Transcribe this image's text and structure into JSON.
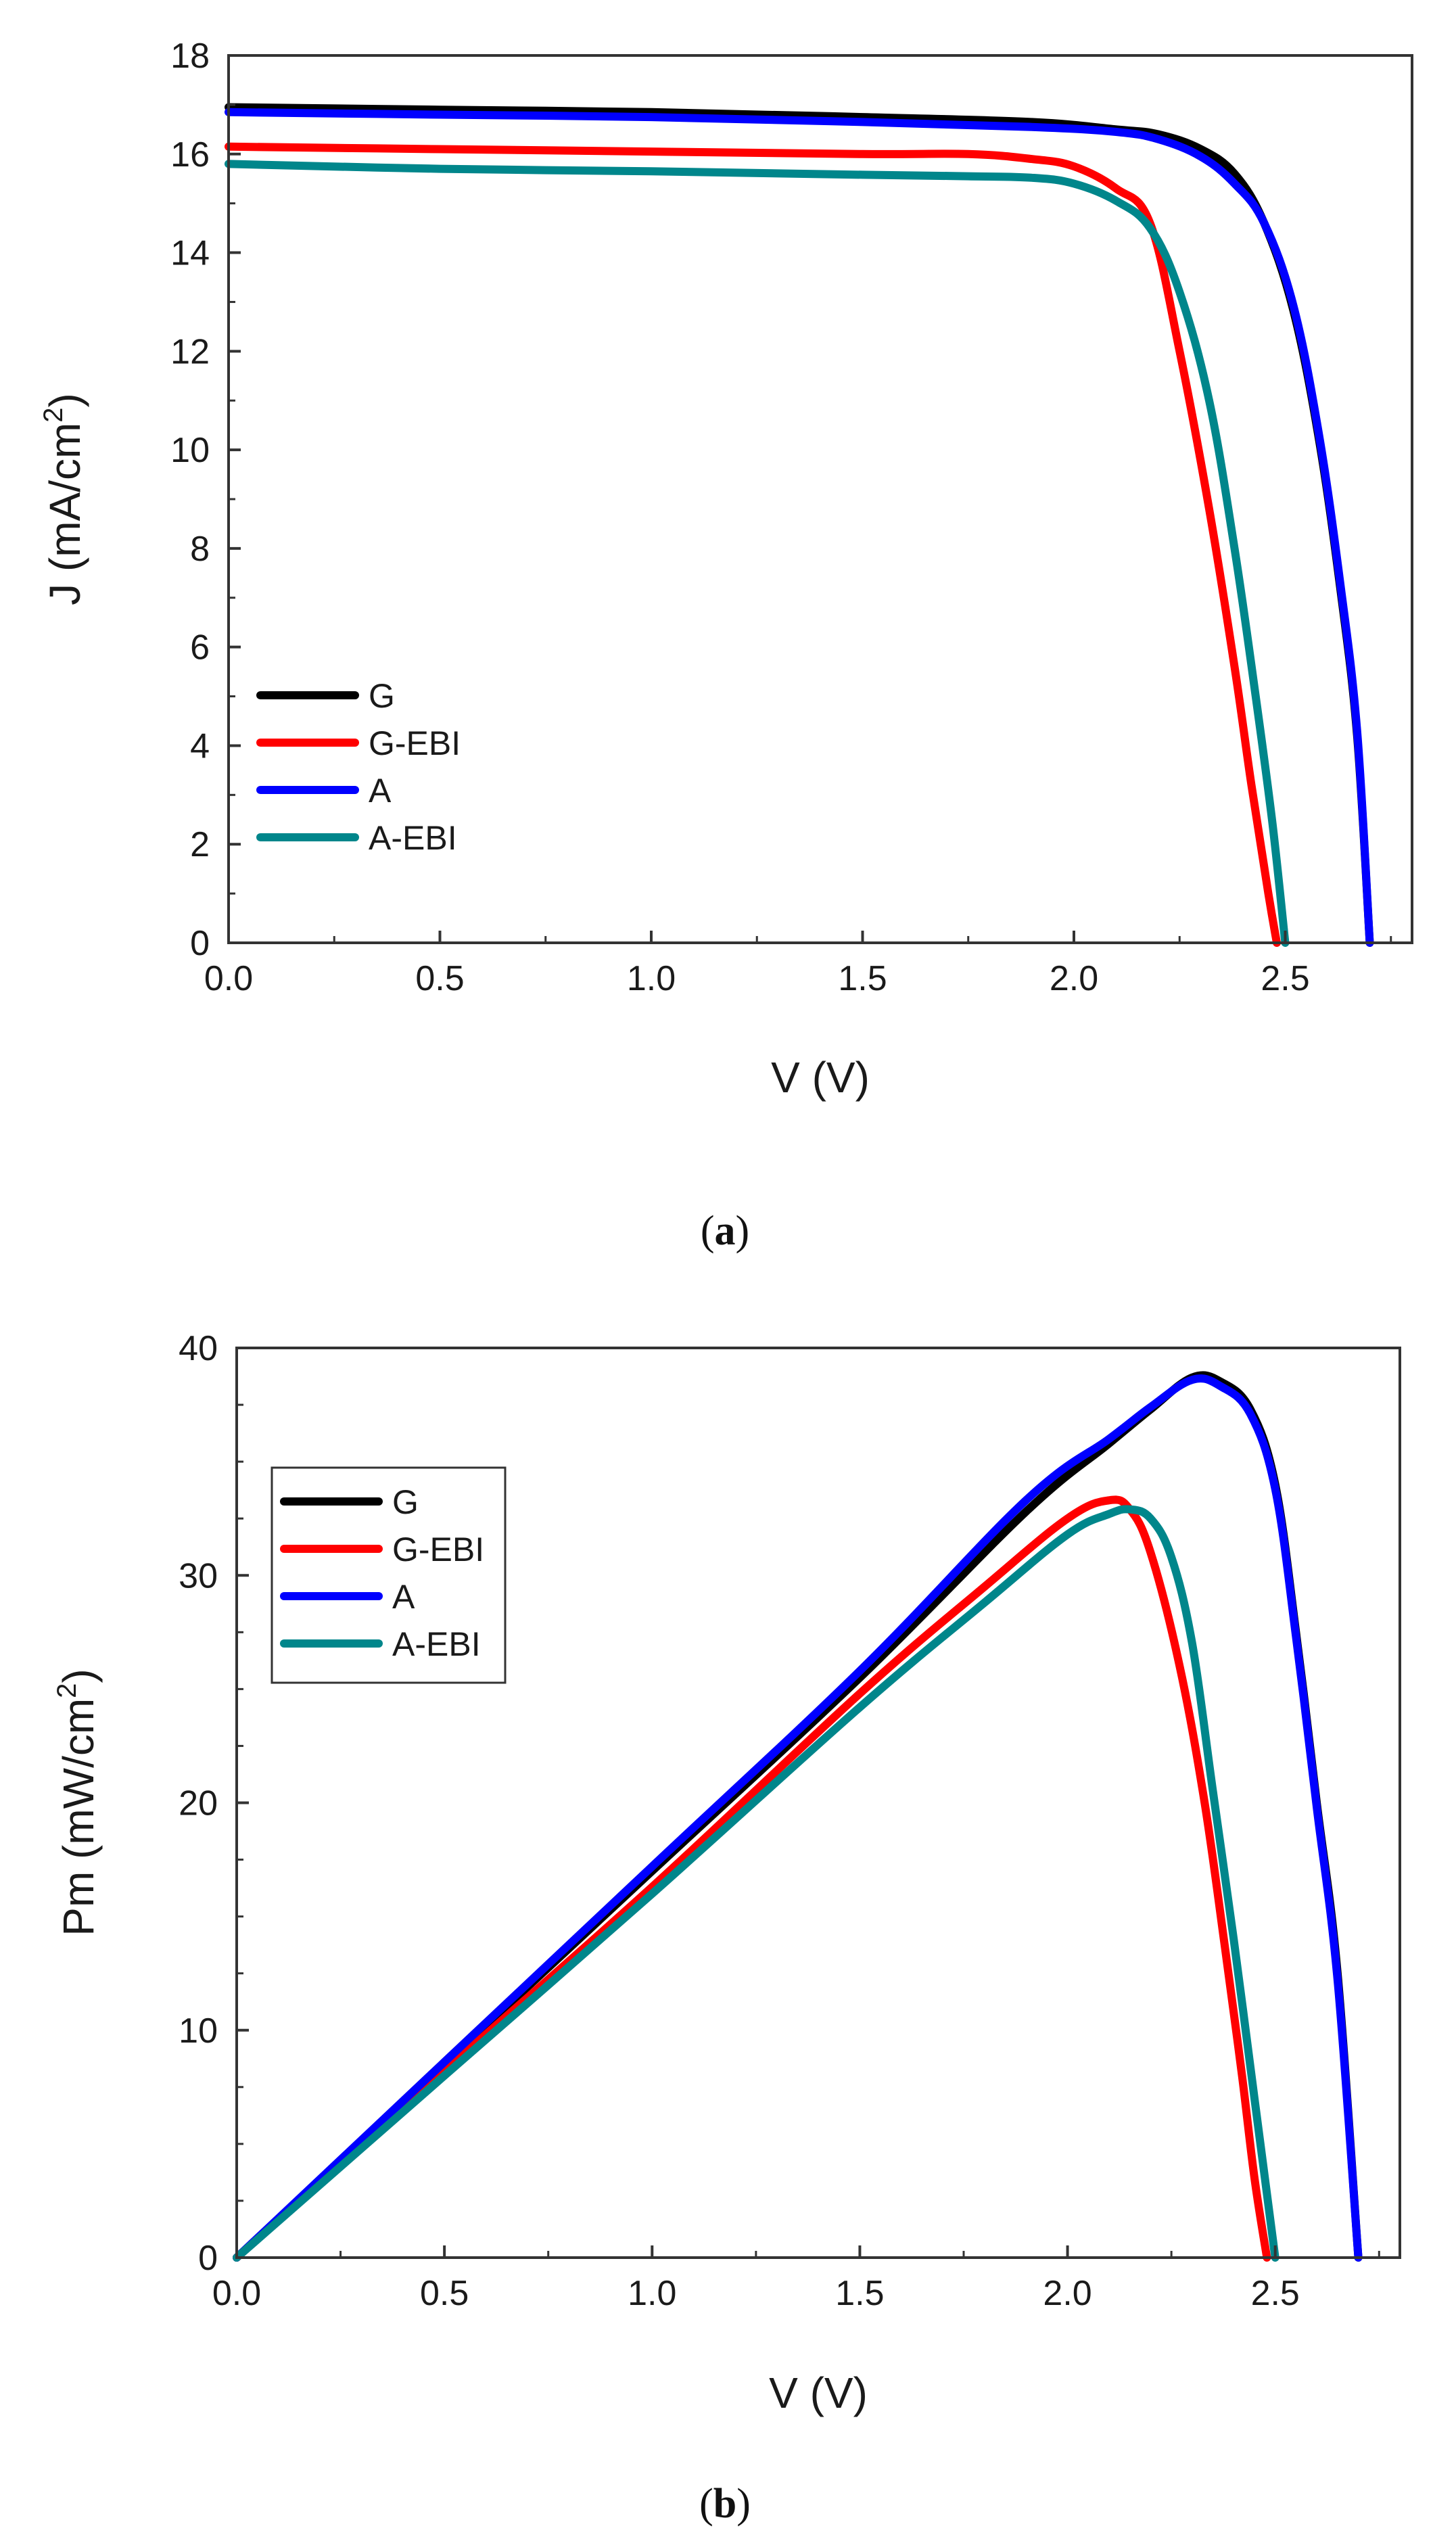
{
  "chart_data": [
    {
      "panel": "a",
      "type": "line",
      "title": "",
      "xlabel": "V (V)",
      "ylabel_main": "J (mA/cm",
      "ylabel_sup": "2",
      "ylabel_tail": ")",
      "xlim": [
        0,
        2.8
      ],
      "ylim": [
        0,
        18
      ],
      "xticks": [
        0,
        0.5,
        1.0,
        1.5,
        2.0,
        2.5
      ],
      "xtick_labels": [
        "0.0",
        "0.5",
        "1.0",
        "1.5",
        "2.0",
        "2.5"
      ],
      "yticks": [
        0,
        2,
        4,
        6,
        8,
        10,
        12,
        14,
        16,
        18
      ],
      "ytick_labels": [
        "0",
        "2",
        "4",
        "6",
        "8",
        "10",
        "12",
        "14",
        "16",
        "18"
      ],
      "grid": false,
      "legend_position": "bottom-left",
      "caption_open": "(",
      "caption_letter": "a",
      "caption_close": ")",
      "series": [
        {
          "name": "G",
          "color": "#000000",
          "x": [
            0,
            0.5,
            1.0,
            1.5,
            1.9,
            2.1,
            2.2,
            2.3,
            2.38,
            2.45,
            2.52,
            2.58,
            2.63,
            2.67,
            2.7
          ],
          "y": [
            16.95,
            16.9,
            16.85,
            16.75,
            16.65,
            16.5,
            16.4,
            16.1,
            15.6,
            14.6,
            12.8,
            10.2,
            7.2,
            4.2,
            0
          ]
        },
        {
          "name": "G-EBI",
          "color": "#ff0000",
          "x": [
            0,
            0.5,
            1.0,
            1.5,
            1.75,
            1.9,
            2.0,
            2.1,
            2.18,
            2.25,
            2.32,
            2.38,
            2.42,
            2.46,
            2.48
          ],
          "y": [
            16.15,
            16.1,
            16.05,
            16.0,
            16.0,
            15.9,
            15.75,
            15.3,
            14.6,
            12.0,
            8.8,
            5.6,
            3.2,
            1.0,
            0
          ]
        },
        {
          "name": "A",
          "color": "#0000ff",
          "x": [
            0,
            0.5,
            1.0,
            1.5,
            1.9,
            2.1,
            2.2,
            2.3,
            2.38,
            2.45,
            2.52,
            2.58,
            2.63,
            2.67,
            2.7
          ],
          "y": [
            16.85,
            16.8,
            16.75,
            16.65,
            16.55,
            16.45,
            16.3,
            15.95,
            15.4,
            14.6,
            12.9,
            10.3,
            7.3,
            4.3,
            0
          ]
        },
        {
          "name": "A-EBI",
          "color": "#00868b",
          "x": [
            0,
            0.5,
            1.0,
            1.5,
            1.75,
            1.9,
            2.0,
            2.1,
            2.18,
            2.25,
            2.32,
            2.38,
            2.43,
            2.47,
            2.5
          ],
          "y": [
            15.8,
            15.7,
            15.65,
            15.58,
            15.55,
            15.52,
            15.4,
            15.05,
            14.5,
            13.2,
            11.0,
            8.0,
            5.0,
            2.4,
            0
          ]
        }
      ]
    },
    {
      "panel": "b",
      "type": "line",
      "title": "",
      "xlabel": "V (V)",
      "ylabel_main": "Pm (mW/cm",
      "ylabel_sup": "2",
      "ylabel_tail": ")",
      "xlim": [
        0,
        2.8
      ],
      "ylim": [
        0,
        40
      ],
      "xticks": [
        0,
        0.5,
        1.0,
        1.5,
        2.0,
        2.5
      ],
      "xtick_labels": [
        "0.0",
        "0.5",
        "1.0",
        "1.5",
        "2.0",
        "2.5"
      ],
      "yticks": [
        0,
        10,
        20,
        30,
        40
      ],
      "ytick_labels": [
        "0",
        "10",
        "20",
        "30",
        "40"
      ],
      "grid": false,
      "legend_position": "middle-left",
      "caption_open": "(",
      "caption_letter": "b",
      "caption_close": ")",
      "series": [
        {
          "name": "G",
          "color": "#000000",
          "x": [
            0,
            0.5,
            1.0,
            1.5,
            1.9,
            2.1,
            2.2,
            2.3,
            2.37,
            2.44,
            2.5,
            2.55,
            2.6,
            2.65,
            2.7
          ],
          "y": [
            0,
            8.5,
            17.0,
            25.5,
            32.8,
            35.8,
            37.3,
            38.7,
            38.5,
            37.3,
            34.0,
            27.5,
            20.0,
            12.5,
            0
          ]
        },
        {
          "name": "G-EBI",
          "color": "#ff0000",
          "x": [
            0,
            0.5,
            1.0,
            1.5,
            1.8,
            2.0,
            2.1,
            2.15,
            2.2,
            2.27,
            2.33,
            2.38,
            2.42,
            2.45,
            2.48
          ],
          "y": [
            0,
            8.2,
            16.3,
            24.8,
            29.5,
            32.5,
            33.3,
            32.9,
            31.0,
            26.0,
            20.0,
            13.5,
            8.0,
            3.5,
            0
          ]
        },
        {
          "name": "A",
          "color": "#0000ff",
          "x": [
            0,
            0.5,
            1.0,
            1.5,
            1.9,
            2.1,
            2.2,
            2.3,
            2.37,
            2.44,
            2.5,
            2.55,
            2.6,
            2.65,
            2.7
          ],
          "y": [
            0,
            8.6,
            17.2,
            25.8,
            33.3,
            36.0,
            37.4,
            38.6,
            38.3,
            37.1,
            33.8,
            27.3,
            19.8,
            12.2,
            0
          ]
        },
        {
          "name": "A-EBI",
          "color": "#00868b",
          "x": [
            0,
            0.5,
            1.0,
            1.5,
            1.8,
            2.0,
            2.1,
            2.15,
            2.2,
            2.25,
            2.3,
            2.35,
            2.4,
            2.45,
            2.5
          ],
          "y": [
            0,
            8.0,
            16.0,
            24.2,
            28.8,
            31.8,
            32.7,
            32.9,
            32.5,
            30.8,
            27.0,
            20.5,
            14.0,
            7.0,
            0
          ]
        }
      ]
    }
  ]
}
